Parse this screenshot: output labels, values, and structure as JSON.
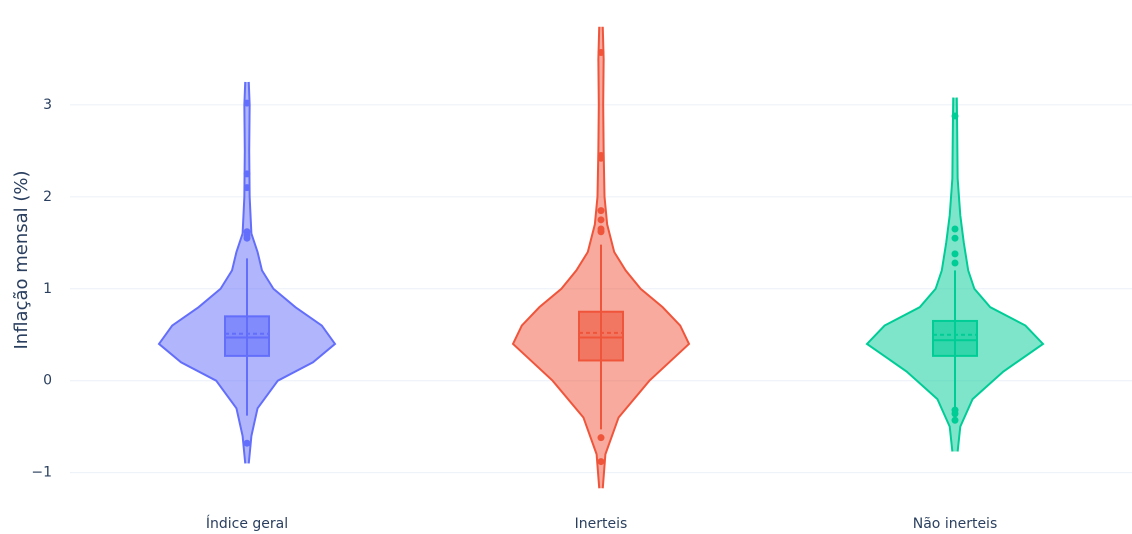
{
  "chart_data": {
    "type": "violin",
    "y_label": "Inflação mensal (%)",
    "categories": [
      "Índice geral",
      "Inerteis",
      "Não inerteis"
    ],
    "ylim": [
      -1.2,
      4.0
    ],
    "yticks": [
      {
        "value": -1,
        "label": "−1"
      },
      0,
      1,
      2,
      3
    ],
    "grid": true,
    "series": [
      {
        "name": "Índice geral",
        "color": "#636efa",
        "q1": 0.27,
        "median": 0.47,
        "q3": 0.7,
        "mean": 0.51,
        "lower_fence": -0.38,
        "upper_fence": 1.33,
        "outliers": [
          3.02,
          2.25,
          2.1,
          1.62,
          1.58,
          1.55,
          -0.68
        ],
        "density": {
          "y": [
            -0.9,
            -0.6,
            -0.3,
            0,
            0.2,
            0.4,
            0.6,
            0.8,
            1.0,
            1.2,
            1.4,
            1.6,
            2.0,
            2.5,
            3.0,
            3.25
          ],
          "values": [
            0.02,
            0.05,
            0.12,
            0.35,
            0.75,
            1.0,
            0.85,
            0.55,
            0.3,
            0.17,
            0.12,
            0.05,
            0.03,
            0.025,
            0.03,
            0.02
          ]
        }
      },
      {
        "name": "Inerteis",
        "color": "#ef553b",
        "q1": 0.22,
        "median": 0.47,
        "q3": 0.75,
        "mean": 0.52,
        "lower_fence": -0.53,
        "upper_fence": 1.48,
        "outliers": [
          3.57,
          2.45,
          2.42,
          1.85,
          1.75,
          1.65,
          1.62,
          -0.62,
          -0.88
        ],
        "density": {
          "y": [
            -1.17,
            -0.8,
            -0.4,
            0,
            0.4,
            0.6,
            0.8,
            1.0,
            1.2,
            1.4,
            1.7,
            2.0,
            2.5,
            3.0,
            3.5,
            3.85
          ],
          "values": [
            0.02,
            0.05,
            0.2,
            0.55,
            1.0,
            0.9,
            0.7,
            0.45,
            0.28,
            0.15,
            0.07,
            0.04,
            0.03,
            0.025,
            0.03,
            0.02
          ]
        }
      },
      {
        "name": "Não inerteis",
        "color": "#00cc96",
        "q1": 0.27,
        "median": 0.44,
        "q3": 0.65,
        "mean": 0.5,
        "lower_fence": -0.3,
        "upper_fence": 1.2,
        "outliers": [
          2.88,
          1.65,
          1.55,
          1.38,
          1.28,
          -0.32,
          -0.36,
          -0.43
        ],
        "density": {
          "y": [
            -0.77,
            -0.5,
            -0.2,
            0.1,
            0.4,
            0.6,
            0.8,
            1.0,
            1.2,
            1.5,
            1.8,
            2.2,
            2.7,
            3.08
          ],
          "values": [
            0.03,
            0.06,
            0.2,
            0.55,
            1.0,
            0.8,
            0.4,
            0.22,
            0.15,
            0.1,
            0.06,
            0.03,
            0.025,
            0.02
          ]
        }
      }
    ]
  }
}
